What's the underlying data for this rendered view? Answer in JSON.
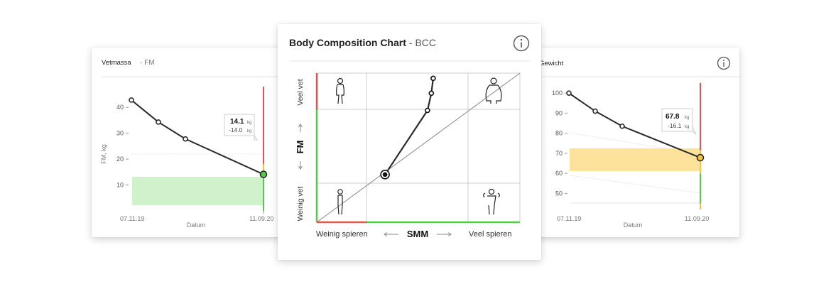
{
  "colors": {
    "red": "#e05656",
    "yellow": "#f4c542",
    "green": "#55c84e",
    "green_fill": "#cff2cb",
    "yellow_fill": "#fde29b",
    "line": "#2b2b2b",
    "grid": "#cccccc"
  },
  "left_card": {
    "title": "Vetmassa",
    "subtitle": "- FM",
    "ylabel": "FM, kg",
    "xlabel": "Datum",
    "x_start_label": "07.11.19",
    "x_end_label": "11.09.20",
    "tooltip": {
      "value": "14.1",
      "value_unit": "kg",
      "delta": "-14.0",
      "delta_unit": "kg"
    },
    "chart_data": {
      "type": "line",
      "title": "Vetmassa",
      "ylabel": "FM, kg",
      "xlabel": "Datum",
      "y_ticks": [
        "40",
        "30",
        "20",
        "10"
      ],
      "ylim": [
        0,
        48
      ],
      "x": [
        "07.11.19",
        "",
        "",
        "11.09.20"
      ],
      "values": [
        42.8,
        34.3,
        27.8,
        14.1
      ],
      "green_band": [
        4,
        14
      ],
      "status_bar": [
        {
          "color": "red",
          "from": 18,
          "to": 48
        },
        {
          "color": "yellow",
          "from": 14,
          "to": 18
        },
        {
          "color": "green",
          "from": 0,
          "to": 14
        }
      ]
    }
  },
  "right_card": {
    "title": "Gewicht",
    "info_icon": "info-icon",
    "xlabel": "Datum",
    "x_start_label": "07.11.19",
    "x_end_label": "11.09.20",
    "tooltip": {
      "value": "67.8",
      "value_unit": "kg",
      "delta": "-16.1",
      "delta_unit": "kg"
    },
    "chart_data": {
      "type": "line",
      "title": "Gewicht",
      "xlabel": "Datum",
      "y_ticks": [
        "100",
        "90",
        "80",
        "70",
        "60",
        "50"
      ],
      "ylim": [
        42,
        105
      ],
      "x": [
        "07.11.19",
        "",
        "",
        "11.09.20"
      ],
      "values": [
        100,
        91,
        83.5,
        67.8
      ],
      "yellow_band": [
        60,
        71.5
      ],
      "status_bar": [
        {
          "color": "red",
          "from": 71.5,
          "to": 105
        },
        {
          "color": "yellow",
          "from": 60,
          "to": 71.5
        },
        {
          "color": "green",
          "from": 45,
          "to": 60
        },
        {
          "color": "yellow",
          "from": 42,
          "to": 45
        }
      ]
    }
  },
  "center_card": {
    "title": "Body Composition Chart",
    "subtitle": "- BCC",
    "info_icon": "info-icon",
    "y_axis": {
      "label": "FM",
      "top_label": "Veel vet",
      "bottom_label": "Weinig vet"
    },
    "x_axis": {
      "label": "SMM",
      "left_label": "Weinig spieren",
      "right_label": "Veel spieren"
    },
    "quadrant_icons": [
      "body-slim-fat-icon",
      "body-obese-icon",
      "body-thin-icon",
      "body-muscular-icon"
    ],
    "chart_data": {
      "type": "scatter",
      "title": "Body Composition Chart",
      "xlabel": "SMM",
      "ylabel": "FM",
      "points": [
        [
          0.573,
          0.965
        ],
        [
          0.564,
          0.865
        ],
        [
          0.545,
          0.75
        ],
        [
          0.336,
          0.32
        ]
      ],
      "current_point_index": 3
    }
  }
}
